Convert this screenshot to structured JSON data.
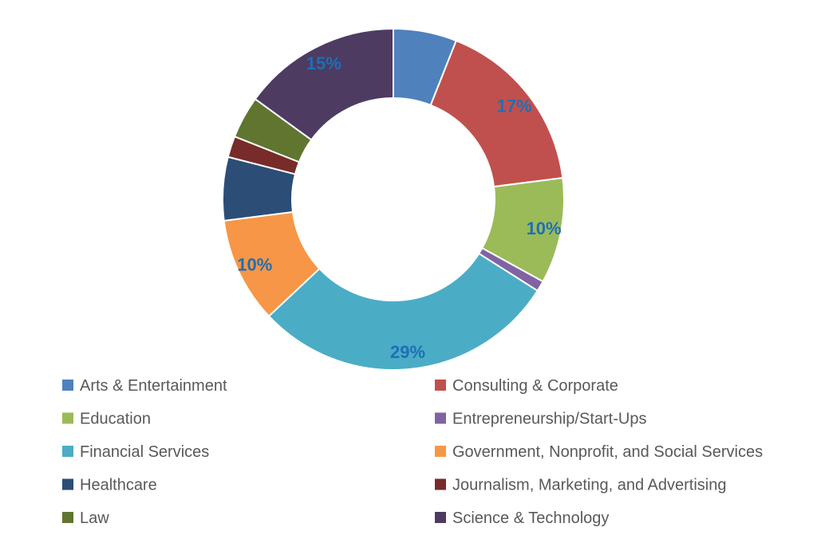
{
  "chart_data": {
    "type": "donut",
    "title": "",
    "categories": [
      "Arts & Entertainment",
      "Consulting & Corporate",
      "Education",
      "Entrepreneurship/Start-Ups",
      "Financial Services",
      "Government, Nonprofit, and Social Services",
      "Healthcare",
      "Journalism, Marketing, and Advertising",
      "Law",
      "Science & Technology"
    ],
    "values": [
      6,
      17,
      10,
      1,
      29,
      10,
      6,
      2,
      4,
      15
    ],
    "colors": [
      "#4f81bd",
      "#c0504d",
      "#9bbb59",
      "#8064a2",
      "#4bacc6",
      "#f79646",
      "#2c4d75",
      "#772c2a",
      "#5f7530",
      "#4d3b62"
    ],
    "data_labels": {
      "1": "17%",
      "2": "10%",
      "4": "29%",
      "5": "10%",
      "9": "15%"
    },
    "legend_position": "bottom"
  }
}
